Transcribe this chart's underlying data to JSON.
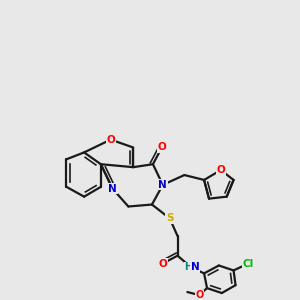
{
  "bg": "#e8e8e8",
  "bond_color": "#1a1a1a",
  "O_color": "#ff0000",
  "N_color": "#0000cc",
  "S_color": "#ccaa00",
  "Cl_color": "#00bb00",
  "H_color": "#008888",
  "figsize": [
    3.0,
    3.0
  ],
  "dpi": 100
}
